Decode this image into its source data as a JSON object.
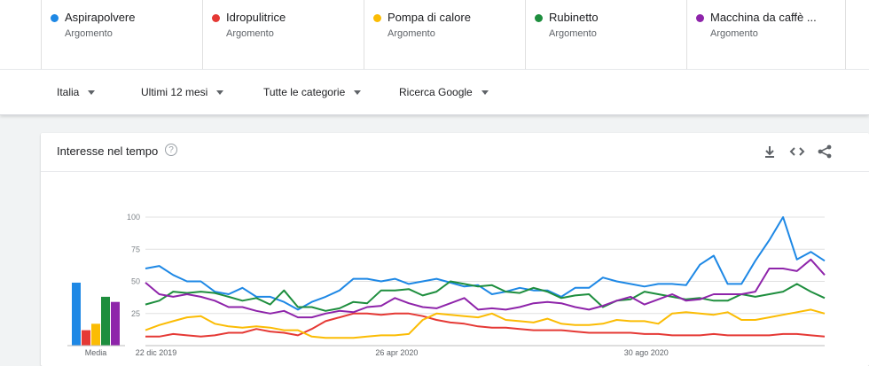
{
  "terms": [
    {
      "name": "Aspirapolvere",
      "type": "Argomento",
      "color": "#1e88e5"
    },
    {
      "name": "Idropulitrice",
      "type": "Argomento",
      "color": "#e53935"
    },
    {
      "name": "Pompa di calore",
      "type": "Argomento",
      "color": "#fbbc04"
    },
    {
      "name": "Rubinetto",
      "type": "Argomento",
      "color": "#1e8e3e"
    },
    {
      "name": "Macchina da caffè ...",
      "type": "Argomento",
      "color": "#8e24aa"
    }
  ],
  "filters": {
    "region": "Italia",
    "period": "Ultimi 12 mesi",
    "category": "Tutte le categorie",
    "search_type": "Ricerca Google"
  },
  "card": {
    "title": "Interesse nel tempo",
    "help_icon": "question-circle-icon",
    "tools": [
      "download-icon",
      "embed-code-icon",
      "share-icon"
    ]
  },
  "chart_data": {
    "type": "line",
    "ylim": [
      0,
      100
    ],
    "y_ticks": [
      25,
      50,
      75,
      100
    ],
    "grid": true,
    "x_tick_labels": [
      "22 dic 2019",
      "26 apr 2020",
      "30 ago 2020"
    ],
    "x_tick_index": [
      0,
      18,
      36
    ],
    "series": [
      {
        "name": "Aspirapolvere",
        "color": "#1e88e5",
        "values": [
          60,
          62,
          55,
          50,
          50,
          42,
          40,
          45,
          38,
          38,
          34,
          28,
          34,
          38,
          43,
          52,
          52,
          50,
          52,
          48,
          50,
          52,
          49,
          46,
          47,
          40,
          42,
          45,
          43,
          43,
          38,
          45,
          45,
          53,
          50,
          48,
          46,
          48,
          48,
          47,
          63,
          70,
          48,
          48,
          66,
          82,
          100,
          67,
          73,
          66
        ]
      },
      {
        "name": "Idropulitrice",
        "color": "#e53935",
        "values": [
          7,
          7,
          9,
          8,
          7,
          8,
          10,
          10,
          13,
          11,
          10,
          8,
          13,
          19,
          22,
          25,
          25,
          24,
          25,
          25,
          23,
          20,
          18,
          17,
          15,
          14,
          14,
          13,
          12,
          12,
          12,
          11,
          10,
          10,
          10,
          10,
          9,
          9,
          8,
          8,
          8,
          9,
          8,
          8,
          8,
          8,
          9,
          9,
          8,
          7
        ]
      },
      {
        "name": "Pompa di calore",
        "color": "#fbbc04",
        "values": [
          12,
          16,
          19,
          22,
          23,
          17,
          15,
          14,
          15,
          14,
          12,
          12,
          7,
          6,
          6,
          6,
          7,
          8,
          8,
          9,
          20,
          25,
          24,
          23,
          22,
          25,
          20,
          19,
          18,
          21,
          17,
          16,
          16,
          17,
          20,
          19,
          19,
          17,
          25,
          26,
          25,
          24,
          26,
          20,
          20,
          22,
          24,
          26,
          28,
          25
        ]
      },
      {
        "name": "Rubinetto",
        "color": "#1e8e3e",
        "values": [
          32,
          35,
          42,
          41,
          42,
          41,
          38,
          35,
          37,
          32,
          43,
          30,
          30,
          27,
          29,
          34,
          33,
          43,
          43,
          44,
          39,
          42,
          50,
          48,
          46,
          47,
          42,
          41,
          45,
          42,
          37,
          39,
          40,
          30,
          35,
          36,
          42,
          40,
          38,
          36,
          37,
          35,
          35,
          40,
          38,
          40,
          42,
          48,
          42,
          37
        ]
      },
      {
        "name": "Macchina da caffè ...",
        "color": "#8e24aa",
        "values": [
          49,
          40,
          38,
          40,
          38,
          35,
          30,
          30,
          27,
          25,
          27,
          22,
          22,
          25,
          27,
          26,
          30,
          31,
          37,
          33,
          30,
          29,
          33,
          37,
          28,
          29,
          28,
          30,
          33,
          34,
          33,
          30,
          28,
          31,
          35,
          38,
          32,
          36,
          40,
          35,
          36,
          40,
          40,
          40,
          42,
          60,
          60,
          58,
          67,
          55
        ]
      }
    ]
  },
  "average_bars": {
    "label": "Media",
    "values": [
      49,
      12,
      17,
      38,
      34
    ]
  }
}
